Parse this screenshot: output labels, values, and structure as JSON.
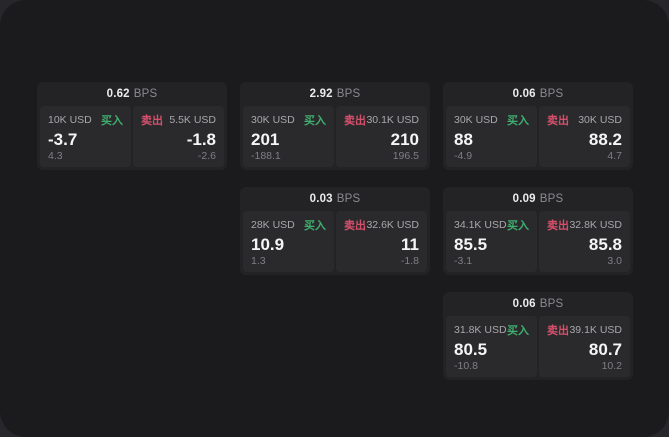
{
  "labels": {
    "unit": "BPS",
    "buy": "买入",
    "sell": "卖出"
  },
  "colors": {
    "buy_accent": "#3fae6e",
    "sell_accent": "#d5506b",
    "surface": "#1b1b1d",
    "card": "#232326",
    "tile": "#2a2a2d"
  },
  "cards": [
    {
      "bps": "0.62",
      "col": 0,
      "row": 0,
      "buy": {
        "amount": "10K USD",
        "value": "-3.7",
        "delta": "4.3"
      },
      "sell": {
        "amount": "5.5K USD",
        "value": "-1.8",
        "delta": "-2.6"
      }
    },
    {
      "bps": "2.92",
      "col": 1,
      "row": 0,
      "buy": {
        "amount": "30K USD",
        "value": "201",
        "delta": "-188.1"
      },
      "sell": {
        "amount": "30.1K USD",
        "value": "210",
        "delta": "196.5"
      }
    },
    {
      "bps": "0.06",
      "col": 2,
      "row": 0,
      "buy": {
        "amount": "30K USD",
        "value": "88",
        "delta": "-4.9"
      },
      "sell": {
        "amount": "30K USD",
        "value": "88.2",
        "delta": "4.7"
      }
    },
    {
      "bps": "0.03",
      "col": 1,
      "row": 1,
      "buy": {
        "amount": "28K USD",
        "value": "10.9",
        "delta": "1.3"
      },
      "sell": {
        "amount": "32.6K USD",
        "value": "11",
        "delta": "-1.8"
      }
    },
    {
      "bps": "0.09",
      "col": 2,
      "row": 1,
      "buy": {
        "amount": "34.1K USD",
        "value": "85.5",
        "delta": "-3.1"
      },
      "sell": {
        "amount": "32.8K USD",
        "value": "85.8",
        "delta": "3.0"
      }
    },
    {
      "bps": "0.06",
      "col": 2,
      "row": 2,
      "buy": {
        "amount": "31.8K USD",
        "value": "80.5",
        "delta": "-10.8"
      },
      "sell": {
        "amount": "39.1K USD",
        "value": "80.7",
        "delta": "10.2"
      }
    }
  ]
}
